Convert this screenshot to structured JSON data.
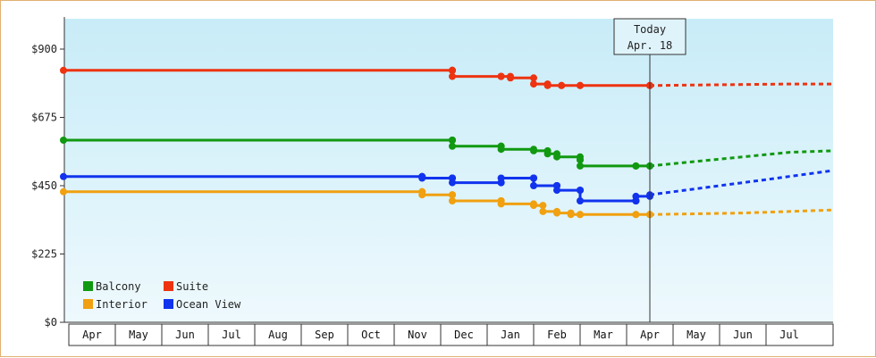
{
  "chart_data": {
    "type": "line",
    "y_ticks": [
      "$900",
      "$675",
      "$450",
      "$225",
      "$0"
    ],
    "y_tick_values": [
      900,
      675,
      450,
      225,
      0
    ],
    "ylim": [
      0,
      1000
    ],
    "months": [
      "Apr",
      "May",
      "Jun",
      "Jul",
      "Aug",
      "Sep",
      "Oct",
      "Nov",
      "Dec",
      "Jan",
      "Feb",
      "Mar",
      "Apr",
      "May",
      "Jun",
      "Jul"
    ],
    "today": {
      "line1": "Today",
      "line2": "Apr. 18"
    },
    "legend_placement": "bottom-left",
    "series": [
      {
        "name": "Balcony",
        "color": "#119911",
        "actual": [
          [
            0,
            600
          ],
          [
            8.25,
            600
          ],
          [
            8.25,
            580
          ],
          [
            9.3,
            580
          ],
          [
            9.3,
            570
          ],
          [
            10.0,
            565
          ],
          [
            10.3,
            555
          ],
          [
            10.5,
            545
          ],
          [
            11.0,
            535
          ],
          [
            11.0,
            515
          ],
          [
            12.2,
            515
          ],
          [
            12.5,
            515
          ]
        ],
        "forecast": [
          [
            12.5,
            515
          ],
          [
            15.5,
            560
          ],
          [
            16.5,
            565
          ]
        ]
      },
      {
        "name": "Suite",
        "color": "#ee3311",
        "actual": [
          [
            0,
            830
          ],
          [
            8.25,
            830
          ],
          [
            8.25,
            810
          ],
          [
            9.3,
            810
          ],
          [
            9.3,
            810
          ],
          [
            9.5,
            805
          ],
          [
            10.0,
            785
          ],
          [
            10.3,
            780
          ],
          [
            10.6,
            780
          ],
          [
            11.0,
            780
          ],
          [
            12.5,
            780
          ]
        ],
        "forecast": [
          [
            12.5,
            780
          ],
          [
            15.5,
            785
          ],
          [
            16.5,
            785
          ]
        ]
      },
      {
        "name": "Interior",
        "color": "#f0a010",
        "actual": [
          [
            0,
            430
          ],
          [
            7.6,
            430
          ],
          [
            7.6,
            420
          ],
          [
            8.25,
            420
          ],
          [
            8.25,
            400
          ],
          [
            9.3,
            400
          ],
          [
            9.3,
            390
          ],
          [
            10.0,
            385
          ],
          [
            10.2,
            365
          ],
          [
            10.5,
            360
          ],
          [
            10.8,
            355
          ],
          [
            11.0,
            355
          ],
          [
            12.2,
            355
          ],
          [
            12.5,
            355
          ]
        ],
        "forecast": [
          [
            12.5,
            355
          ],
          [
            14.5,
            360
          ],
          [
            16.5,
            370
          ]
        ]
      },
      {
        "name": "Ocean View",
        "color": "#1133ee",
        "actual": [
          [
            0,
            480
          ],
          [
            7.6,
            480
          ],
          [
            7.6,
            475
          ],
          [
            8.25,
            475
          ],
          [
            8.25,
            460
          ],
          [
            9.3,
            460
          ],
          [
            9.3,
            475
          ],
          [
            10.0,
            475
          ],
          [
            10.0,
            450
          ],
          [
            10.5,
            450
          ],
          [
            10.5,
            435
          ],
          [
            11.0,
            435
          ],
          [
            11.0,
            400
          ],
          [
            12.2,
            400
          ],
          [
            12.2,
            415
          ],
          [
            12.5,
            420
          ]
        ],
        "forecast": [
          [
            12.5,
            420
          ],
          [
            15.0,
            470
          ],
          [
            16.5,
            500
          ]
        ]
      }
    ]
  }
}
